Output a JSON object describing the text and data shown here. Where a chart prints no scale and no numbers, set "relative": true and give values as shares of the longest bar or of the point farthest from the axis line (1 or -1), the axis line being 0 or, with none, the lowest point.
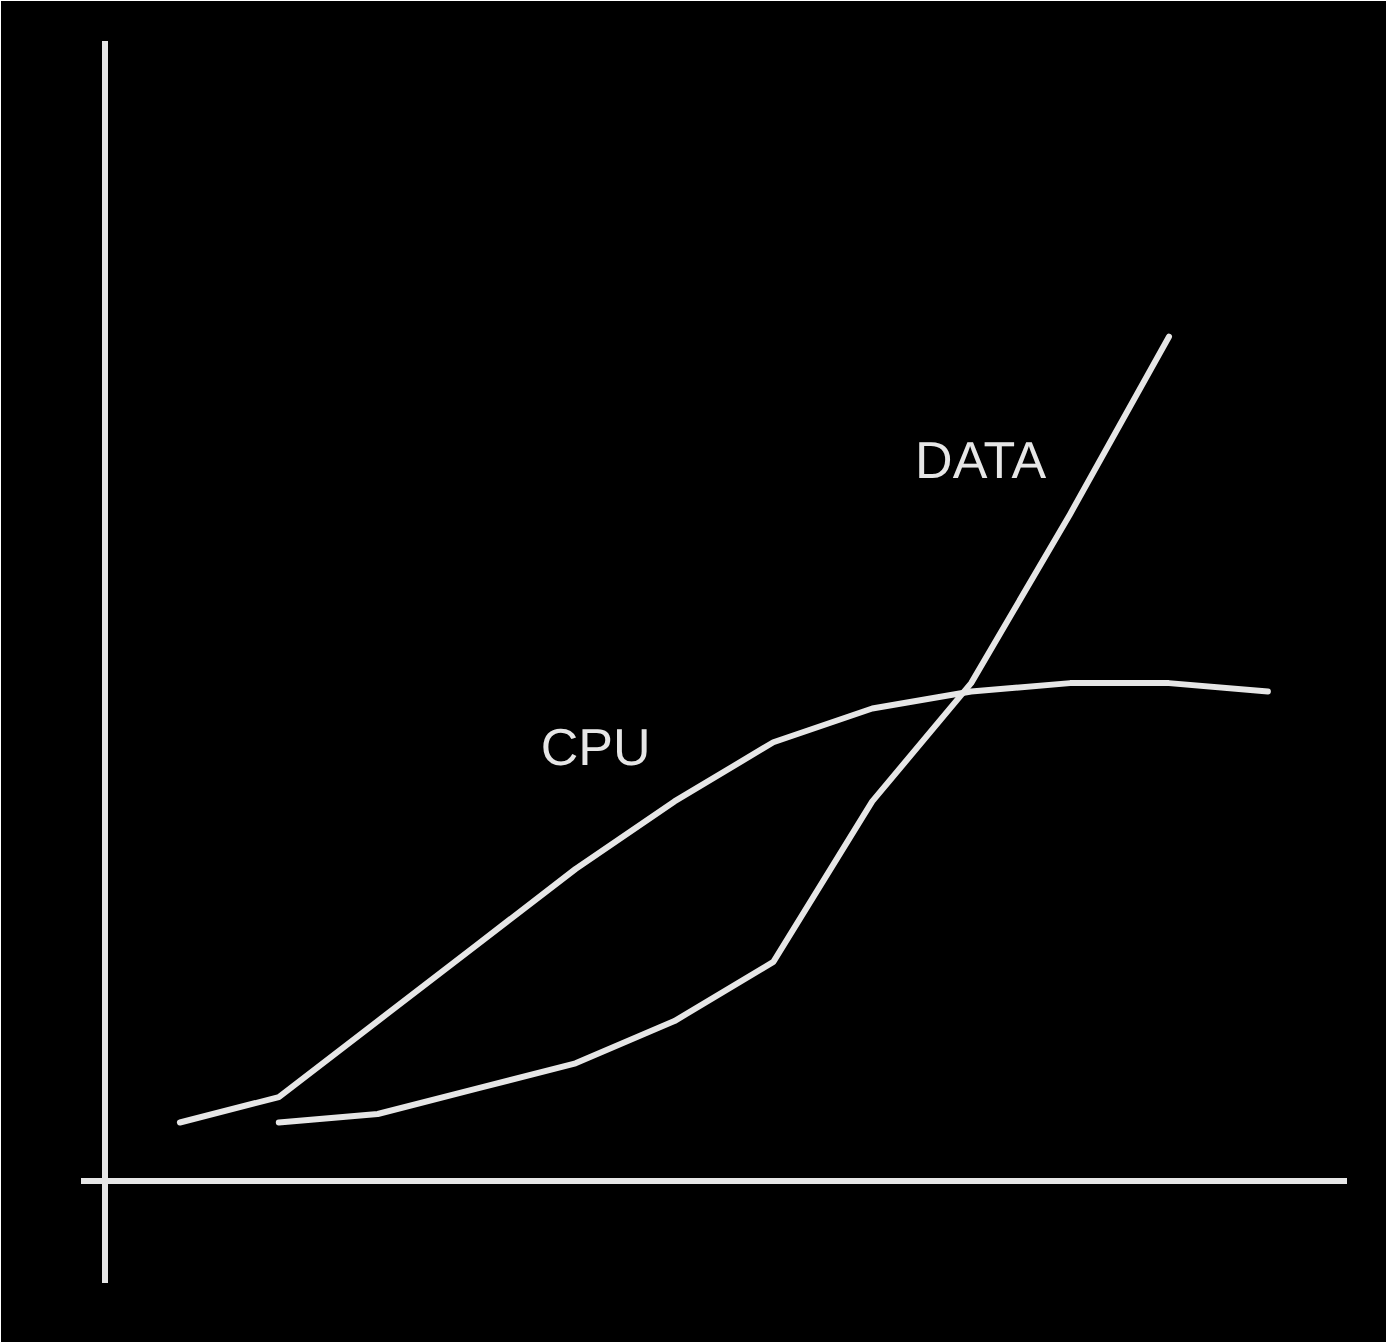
{
  "chart_data": {
    "type": "line",
    "relative": true,
    "categories": [
      null,
      null,
      null,
      null,
      null,
      null,
      null,
      null,
      null,
      null,
      null,
      null
    ],
    "series": [
      {
        "name": "CPU",
        "color": "#e6e6e6",
        "values": [
          0.07,
          0.1,
          0.19,
          0.28,
          0.37,
          0.45,
          0.52,
          0.56,
          0.58,
          0.59,
          0.59,
          0.58
        ]
      },
      {
        "name": "DATA",
        "color": "#e6e6e6",
        "values": [
          null,
          0.07,
          0.08,
          0.11,
          0.14,
          0.19,
          0.26,
          0.45,
          0.59,
          0.79,
          1.0,
          null
        ]
      }
    ]
  }
}
